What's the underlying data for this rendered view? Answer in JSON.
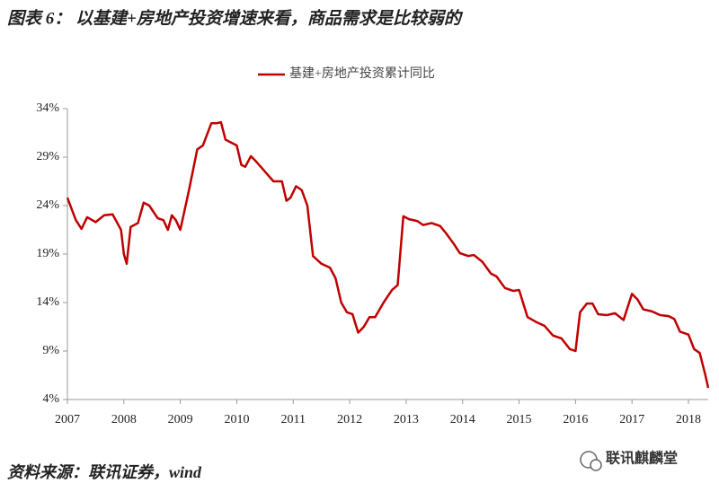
{
  "chart_data": {
    "type": "line",
    "title": "图表 6： 以基建+房地产投资增速来看，商品需求是比较弱的",
    "source": "资料来源：联讯证券，wind",
    "x": [
      2007.0,
      2007.15,
      2007.25,
      2007.35,
      2007.5,
      2007.65,
      2007.8,
      2007.95,
      2008.0,
      2008.05,
      2008.12,
      2008.25,
      2008.35,
      2008.45,
      2008.6,
      2008.7,
      2008.78,
      2008.85,
      2008.92,
      2009.0,
      2009.15,
      2009.3,
      2009.4,
      2009.55,
      2009.65,
      2009.72,
      2009.8,
      2010.0,
      2010.08,
      2010.15,
      2010.25,
      2010.35,
      2010.5,
      2010.65,
      2010.8,
      2010.88,
      2010.95,
      2011.05,
      2011.15,
      2011.25,
      2011.35,
      2011.5,
      2011.65,
      2011.75,
      2011.85,
      2011.95,
      2012.05,
      2012.15,
      2012.25,
      2012.35,
      2012.45,
      2012.6,
      2012.75,
      2012.85,
      2012.95,
      2013.05,
      2013.2,
      2013.3,
      2013.45,
      2013.6,
      2013.7,
      2013.85,
      2013.95,
      2014.1,
      2014.2,
      2014.35,
      2014.5,
      2014.6,
      2014.75,
      2014.9,
      2015.0,
      2015.15,
      2015.3,
      2015.45,
      2015.6,
      2015.75,
      2015.9,
      2016.0,
      2016.08,
      2016.2,
      2016.3,
      2016.4,
      2016.55,
      2016.7,
      2016.85,
      2017.0,
      2017.1,
      2017.2,
      2017.35,
      2017.5,
      2017.65,
      2017.75,
      2017.85,
      2018.0,
      2018.1,
      2018.2,
      2018.3,
      2018.35
    ],
    "series": [
      {
        "name": "基建+房地产投资累计同比",
        "color": "#c00000",
        "values": [
          24.8,
          22.5,
          21.6,
          22.8,
          22.3,
          23.0,
          23.1,
          21.5,
          19.0,
          18.0,
          21.8,
          22.2,
          24.3,
          24.0,
          22.7,
          22.5,
          21.5,
          23.0,
          22.5,
          21.5,
          25.5,
          29.8,
          30.2,
          32.5,
          32.5,
          32.6,
          30.8,
          30.2,
          28.2,
          28.0,
          29.1,
          28.5,
          27.5,
          26.5,
          26.5,
          24.5,
          24.8,
          26.0,
          25.6,
          24.0,
          18.8,
          18.0,
          17.6,
          16.5,
          14.0,
          13.0,
          12.8,
          10.9,
          11.5,
          12.5,
          12.5,
          14.0,
          15.3,
          15.8,
          22.9,
          22.6,
          22.4,
          22.0,
          22.2,
          21.9,
          21.2,
          20.0,
          19.1,
          18.8,
          18.9,
          18.2,
          17.0,
          16.7,
          15.5,
          15.2,
          15.3,
          12.5,
          12.0,
          11.6,
          10.6,
          10.3,
          9.2,
          9.0,
          13.0,
          13.9,
          13.9,
          12.8,
          12.7,
          12.9,
          12.2,
          14.9,
          14.3,
          13.3,
          13.1,
          12.7,
          12.6,
          12.3,
          11.0,
          10.7,
          9.2,
          8.8,
          6.5,
          5.2
        ]
      }
    ],
    "xlim": [
      2007,
      2018.35
    ],
    "xticks": [
      2007,
      2008,
      2009,
      2010,
      2011,
      2012,
      2013,
      2014,
      2015,
      2016,
      2017,
      2018
    ],
    "ylim": [
      4,
      34
    ],
    "yticks": [
      {
        "value": 4,
        "label": "4%"
      },
      {
        "value": 9,
        "label": "9%"
      },
      {
        "value": 14,
        "label": "14%"
      },
      {
        "value": 19,
        "label": "19%"
      },
      {
        "value": 24,
        "label": "24%"
      },
      {
        "value": 29,
        "label": "29%"
      },
      {
        "value": 34,
        "label": "34%"
      }
    ],
    "legend": "top"
  },
  "watermark": "联讯麒麟堂"
}
